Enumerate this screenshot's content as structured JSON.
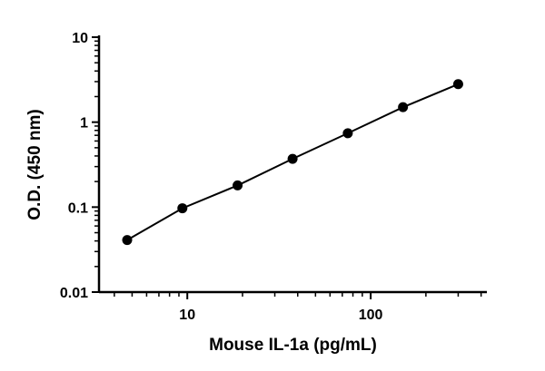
{
  "chart_data": {
    "type": "scatter",
    "title": "",
    "xlabel": "Mouse IL-1a (pg/mL)",
    "ylabel": "O.D. (450 nm)",
    "x_scale": "log",
    "y_scale": "log",
    "xlim": [
      3.3,
      430
    ],
    "ylim": [
      0.01,
      10
    ],
    "x_ticks": [
      {
        "value": 10,
        "label": "10"
      },
      {
        "value": 100,
        "label": "100"
      }
    ],
    "y_ticks": [
      {
        "value": 0.01,
        "label": "0.01"
      },
      {
        "value": 0.1,
        "label": "0.1"
      },
      {
        "value": 1,
        "label": "1"
      },
      {
        "value": 10,
        "label": "10"
      }
    ],
    "fit_line": true,
    "grid": false,
    "series": [
      {
        "x": [
          4.7,
          9.4,
          18.8,
          37.5,
          75,
          150,
          300
        ],
        "y": [
          0.041,
          0.097,
          0.18,
          0.37,
          0.74,
          1.5,
          2.8
        ]
      }
    ]
  }
}
